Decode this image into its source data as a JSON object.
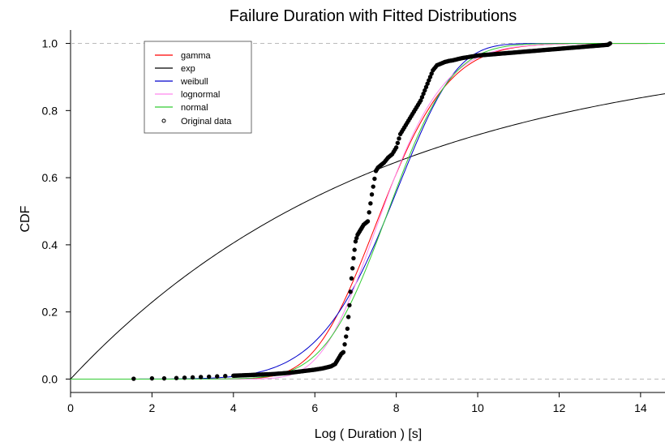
{
  "chart_data": {
    "type": "line",
    "title": "Failure Duration with Fitted Distributions",
    "xlabel": "Log ( Duration ) [s]",
    "ylabel": "CDF",
    "xlim": [
      0,
      14.6
    ],
    "ylim": [
      -0.04,
      1.04
    ],
    "x_ticks": [
      0,
      2,
      4,
      6,
      8,
      10,
      12,
      14
    ],
    "y_ticks": [
      0.0,
      0.2,
      0.4,
      0.6,
      0.8,
      1.0
    ],
    "x_tick_labels": [
      "0",
      "2",
      "4",
      "6",
      "8",
      "10",
      "12",
      "14"
    ],
    "y_tick_labels": [
      "0.0",
      "0.2",
      "0.4",
      "0.6",
      "0.8",
      "1.0"
    ],
    "hlines": [
      0,
      1
    ],
    "grid": false,
    "legend_position": "top-left",
    "series": [
      {
        "name": "gamma",
        "color": "#ff0000",
        "kind": "gamma",
        "shape": 35.0,
        "scale": 0.22
      },
      {
        "name": "exp",
        "color": "#000000",
        "kind": "exp",
        "rate": 0.13
      },
      {
        "name": "weibull",
        "color": "#0000cc",
        "kind": "weibull",
        "shape": 6.7,
        "scale": 8.25
      },
      {
        "name": "lognormal",
        "color": "#ff88ee",
        "kind": "lognormal",
        "meanlog": 2.035,
        "sdlog": 0.155
      },
      {
        "name": "normal",
        "color": "#33cc33",
        "kind": "normal",
        "mean": 7.8,
        "sd": 1.22
      }
    ],
    "original_data": {
      "name": "Original data",
      "color": "#000000",
      "x": [
        1.55,
        2.0,
        2.3,
        2.6,
        2.8,
        3.0,
        3.2,
        3.4,
        3.6,
        3.8,
        4.0,
        4.2,
        4.4,
        4.6,
        4.8,
        5.0,
        5.2,
        5.4,
        5.6,
        5.8,
        6.0,
        6.2,
        6.4,
        6.5,
        6.55,
        6.6,
        6.65,
        6.7,
        6.8,
        6.85,
        6.9,
        6.95,
        7.0,
        7.05,
        7.1,
        7.15,
        7.2,
        7.3,
        7.4,
        7.5,
        7.55,
        7.6,
        7.65,
        7.7,
        7.8,
        7.9,
        8.0,
        8.1,
        8.2,
        8.3,
        8.4,
        8.5,
        8.6,
        8.7,
        8.8,
        8.9,
        9.0,
        9.1,
        9.2,
        9.3,
        9.4,
        9.5,
        9.6,
        9.7,
        9.8,
        9.9,
        10.0,
        10.2,
        10.4,
        10.6,
        10.8,
        11.0,
        11.2,
        11.4,
        11.6,
        11.8,
        12.0,
        12.2,
        12.4,
        12.6,
        12.8,
        13.0,
        13.2,
        13.25
      ],
      "y": [
        0.001,
        0.002,
        0.002,
        0.003,
        0.004,
        0.005,
        0.006,
        0.007,
        0.008,
        0.009,
        0.01,
        0.011,
        0.012,
        0.013,
        0.014,
        0.015,
        0.017,
        0.019,
        0.022,
        0.025,
        0.028,
        0.032,
        0.038,
        0.045,
        0.055,
        0.065,
        0.075,
        0.08,
        0.15,
        0.22,
        0.3,
        0.36,
        0.41,
        0.43,
        0.44,
        0.45,
        0.46,
        0.47,
        0.55,
        0.62,
        0.63,
        0.635,
        0.64,
        0.645,
        0.66,
        0.67,
        0.69,
        0.73,
        0.75,
        0.77,
        0.79,
        0.81,
        0.83,
        0.86,
        0.89,
        0.92,
        0.935,
        0.94,
        0.945,
        0.948,
        0.95,
        0.953,
        0.956,
        0.958,
        0.96,
        0.962,
        0.964,
        0.966,
        0.968,
        0.97,
        0.972,
        0.974,
        0.976,
        0.978,
        0.98,
        0.982,
        0.984,
        0.986,
        0.988,
        0.99,
        0.992,
        0.994,
        0.996,
        1.0
      ]
    }
  }
}
